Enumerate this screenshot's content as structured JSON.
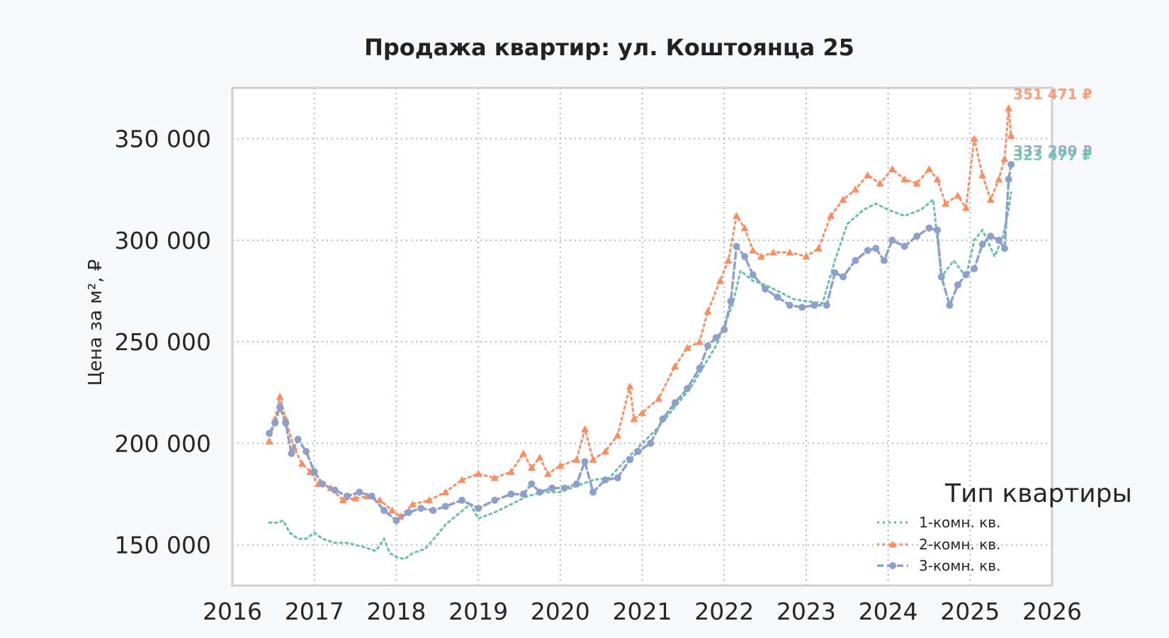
{
  "chart_data": {
    "type": "line",
    "title": "Продажа квартир: ул. Коштоянца 25",
    "xlabel": "",
    "ylabel": "Цена за м², ₽",
    "xlim": [
      2016,
      2026
    ],
    "ylim": [
      130000,
      375000
    ],
    "x_ticks": [
      2016,
      2017,
      2018,
      2019,
      2020,
      2021,
      2022,
      2023,
      2024,
      2025,
      2026
    ],
    "x_tick_labels": [
      "2016",
      "2017",
      "2018",
      "2019",
      "2020",
      "2021",
      "2022",
      "2023",
      "2024",
      "2025",
      "2026"
    ],
    "y_ticks": [
      150000,
      200000,
      250000,
      300000,
      350000
    ],
    "y_tick_labels": [
      "150 000",
      "200 000",
      "250 000",
      "300 000",
      "350 000"
    ],
    "grid": true,
    "legend_position": "bottom-right",
    "legend_title": "Тип квартиры",
    "series": [
      {
        "name": "1-комн. кв.",
        "color": "#66c2a5",
        "line_style": "dotted",
        "marker": "none",
        "x": [
          2016.45,
          2016.55,
          2016.62,
          2016.7,
          2016.8,
          2016.9,
          2017.0,
          2017.1,
          2017.25,
          2017.4,
          2017.6,
          2017.75,
          2017.85,
          2017.92,
          2018.0,
          2018.1,
          2018.2,
          2018.35,
          2018.5,
          2018.6,
          2018.75,
          2018.9,
          2019.0,
          2019.2,
          2019.4,
          2019.6,
          2019.8,
          2020.0,
          2020.2,
          2020.4,
          2020.6,
          2020.8,
          2021.0,
          2021.2,
          2021.4,
          2021.6,
          2021.75,
          2021.9,
          2022.0,
          2022.1,
          2022.2,
          2022.35,
          2022.5,
          2022.7,
          2022.85,
          2023.0,
          2023.2,
          2023.35,
          2023.5,
          2023.7,
          2023.85,
          2024.0,
          2024.2,
          2024.4,
          2024.55,
          2024.65,
          2024.8,
          2024.95,
          2025.05,
          2025.15,
          2025.3,
          2025.4,
          2025.47,
          2025.5
        ],
        "y": [
          161000,
          161000,
          162000,
          156000,
          153000,
          153000,
          156000,
          153000,
          151000,
          151000,
          149000,
          147000,
          153000,
          146000,
          144000,
          143000,
          146000,
          148000,
          155000,
          160000,
          165000,
          170000,
          163000,
          166000,
          170000,
          174000,
          176000,
          176000,
          179000,
          182000,
          183000,
          192000,
          200000,
          208000,
          218000,
          228000,
          238000,
          248000,
          258000,
          268000,
          285000,
          280000,
          278000,
          274000,
          271000,
          270000,
          269000,
          290000,
          308000,
          315000,
          318000,
          315000,
          312000,
          315000,
          320000,
          282000,
          290000,
          282000,
          300000,
          305000,
          292000,
          302000,
          315000,
          323477
        ]
      },
      {
        "name": "2-комн. кв.",
        "color": "#fc8d62",
        "line_style": "dotted",
        "marker": "triangle",
        "x": [
          2016.45,
          2016.52,
          2016.58,
          2016.65,
          2016.75,
          2016.85,
          2016.95,
          2017.05,
          2017.2,
          2017.35,
          2017.5,
          2017.65,
          2017.8,
          2017.95,
          2018.05,
          2018.2,
          2018.4,
          2018.6,
          2018.8,
          2019.0,
          2019.2,
          2019.4,
          2019.55,
          2019.65,
          2019.75,
          2019.85,
          2020.0,
          2020.2,
          2020.3,
          2020.4,
          2020.55,
          2020.7,
          2020.85,
          2020.9,
          2021.0,
          2021.2,
          2021.4,
          2021.55,
          2021.7,
          2021.8,
          2021.95,
          2022.05,
          2022.15,
          2022.25,
          2022.35,
          2022.45,
          2022.6,
          2022.8,
          2023.0,
          2023.15,
          2023.3,
          2023.45,
          2023.6,
          2023.75,
          2023.9,
          2024.05,
          2024.2,
          2024.35,
          2024.5,
          2024.6,
          2024.7,
          2024.85,
          2024.95,
          2025.05,
          2025.15,
          2025.25,
          2025.35,
          2025.42,
          2025.47,
          2025.5
        ],
        "y": [
          201000,
          212000,
          223000,
          212000,
          198000,
          190000,
          186000,
          180000,
          178000,
          172000,
          173000,
          174000,
          172000,
          167000,
          164000,
          170000,
          172000,
          176000,
          182000,
          185000,
          183000,
          186000,
          195000,
          188000,
          193000,
          185000,
          189000,
          192000,
          207000,
          192000,
          196000,
          204000,
          228000,
          212000,
          215000,
          222000,
          238000,
          247000,
          250000,
          265000,
          280000,
          290000,
          312000,
          306000,
          295000,
          292000,
          294000,
          294000,
          292000,
          296000,
          312000,
          320000,
          325000,
          332000,
          328000,
          335000,
          330000,
          328000,
          335000,
          330000,
          318000,
          322000,
          316000,
          350000,
          332000,
          320000,
          330000,
          340000,
          365000,
          351471
        ]
      },
      {
        "name": "3-комн. кв.",
        "color": "#8da0cb",
        "line_style": "dashed",
        "marker": "circle",
        "x": [
          2016.45,
          2016.52,
          2016.58,
          2016.65,
          2016.72,
          2016.8,
          2016.9,
          2017.0,
          2017.1,
          2017.25,
          2017.4,
          2017.55,
          2017.7,
          2017.85,
          2018.0,
          2018.15,
          2018.3,
          2018.45,
          2018.6,
          2018.8,
          2019.0,
          2019.2,
          2019.4,
          2019.55,
          2019.65,
          2019.75,
          2019.9,
          2020.05,
          2020.2,
          2020.3,
          2020.4,
          2020.55,
          2020.7,
          2020.85,
          2020.95,
          2021.1,
          2021.25,
          2021.4,
          2021.55,
          2021.7,
          2021.8,
          2021.9,
          2022.0,
          2022.08,
          2022.15,
          2022.25,
          2022.35,
          2022.5,
          2022.65,
          2022.8,
          2022.95,
          2023.1,
          2023.25,
          2023.35,
          2023.45,
          2023.6,
          2023.75,
          2023.85,
          2023.95,
          2024.05,
          2024.2,
          2024.35,
          2024.5,
          2024.6,
          2024.65,
          2024.75,
          2024.85,
          2024.95,
          2025.05,
          2025.15,
          2025.25,
          2025.35,
          2025.42,
          2025.47,
          2025.5
        ],
        "y": [
          205000,
          210000,
          218000,
          210000,
          195000,
          202000,
          196000,
          186000,
          180000,
          177000,
          174000,
          176000,
          174000,
          167000,
          162000,
          166000,
          168000,
          167000,
          169000,
          172000,
          168000,
          172000,
          175000,
          175000,
          180000,
          176000,
          178000,
          178000,
          180000,
          191000,
          176000,
          182000,
          183000,
          192000,
          196000,
          200000,
          212000,
          220000,
          227000,
          237000,
          248000,
          252000,
          256000,
          270000,
          297000,
          292000,
          283000,
          276000,
          272000,
          268000,
          267000,
          268000,
          268000,
          284000,
          282000,
          290000,
          295000,
          296000,
          290000,
          300000,
          297000,
          302000,
          306000,
          305000,
          282000,
          268000,
          278000,
          283000,
          286000,
          298000,
          302000,
          300000,
          296000,
          330000,
          337280
        ]
      }
    ],
    "end_labels": [
      {
        "series": "2-комн. кв.",
        "text": "351 471 ₽",
        "color": "#fc8d62"
      },
      {
        "series": "3-комн. кв.",
        "text": "337 280 ₽",
        "color": "#8da0cb"
      },
      {
        "series": "1-комн. кв.",
        "text": "323 477 ₽",
        "color": "#66c2a5"
      }
    ]
  }
}
